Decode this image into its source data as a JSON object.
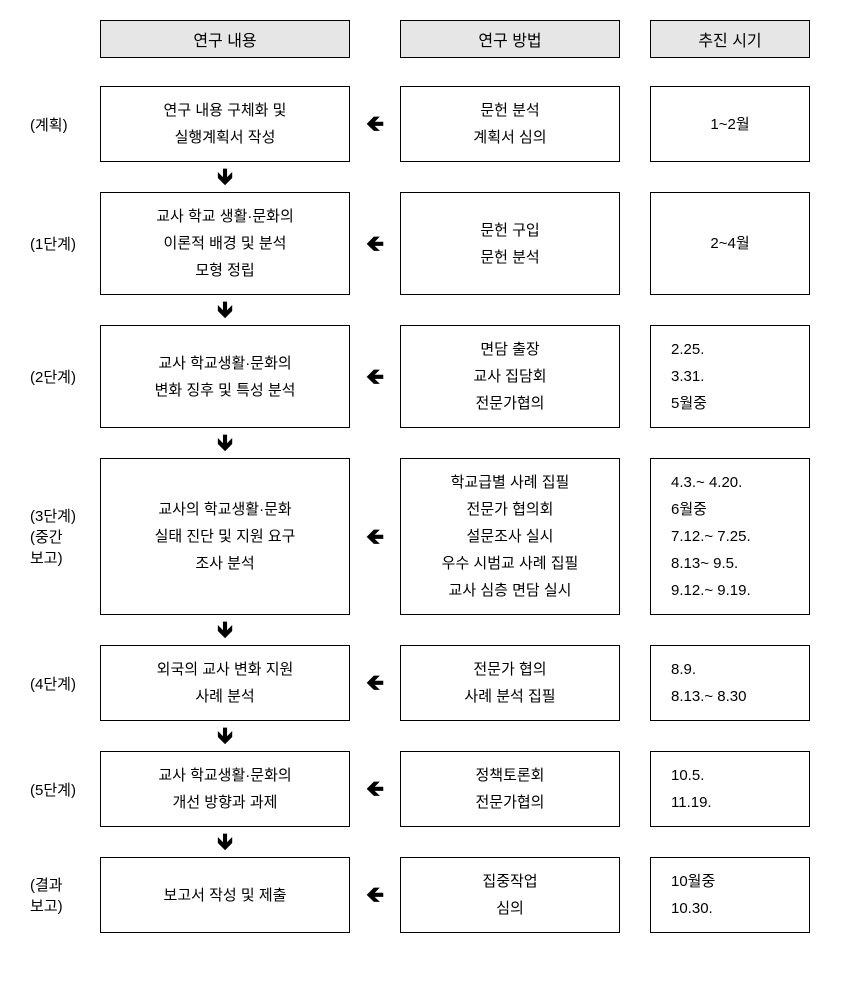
{
  "headers": {
    "content": "연구 내용",
    "method": "연구 방법",
    "time": "추진 시기"
  },
  "arrows": {
    "left": "🡸",
    "down": "🡻"
  },
  "rows": [
    {
      "phase": "(계획)",
      "content": [
        "연구 내용 구체화 및",
        "실행계획서 작성"
      ],
      "method": [
        "문헌 분석",
        "계획서 심의"
      ],
      "time": [
        "1~2월"
      ]
    },
    {
      "phase": "(1단계)",
      "content": [
        "교사 학교 생활·문화의",
        "이론적 배경 및 분석",
        "모형 정립"
      ],
      "method": [
        "문헌 구입",
        "문헌 분석"
      ],
      "time": [
        "2~4월"
      ]
    },
    {
      "phase": "(2단계)",
      "content": [
        "교사 학교생활·문화의",
        "변화 징후 및 특성 분석"
      ],
      "method": [
        "면담 출장",
        "교사 집담회",
        "전문가협의"
      ],
      "time": [
        "2.25.",
        "3.31.",
        "5월중"
      ]
    },
    {
      "phase": "(3단계)\n(중간\n보고)",
      "content": [
        "교사의 학교생활·문화",
        "실태 진단 및 지원 요구",
        "조사 분석"
      ],
      "method": [
        "학교급별 사례 집필",
        "전문가 협의회",
        "설문조사 실시",
        "우수 시범교 사례 집필",
        "교사 심층 면담 실시"
      ],
      "time": [
        "4.3.~ 4.20.",
        "6월중",
        "7.12.~ 7.25.",
        "8.13~ 9.5.",
        "9.12.~ 9.19."
      ]
    },
    {
      "phase": "(4단계)",
      "content": [
        "외국의 교사 변화 지원",
        "사례 분석"
      ],
      "method": [
        "전문가 협의",
        "사례 분석 집필"
      ],
      "time": [
        "8.9.",
        "8.13.~ 8.30"
      ]
    },
    {
      "phase": "(5단계)",
      "content": [
        "교사 학교생활·문화의",
        "개선 방향과 과제"
      ],
      "method": [
        "정책토론회",
        "전문가협의"
      ],
      "time": [
        "10.5.",
        "11.19."
      ]
    },
    {
      "phase": "(결과\n보고)",
      "content": [
        "보고서 작성 및 제출"
      ],
      "method": [
        "집중작업",
        "심의"
      ],
      "time": [
        "10월중",
        "10.30."
      ]
    }
  ]
}
